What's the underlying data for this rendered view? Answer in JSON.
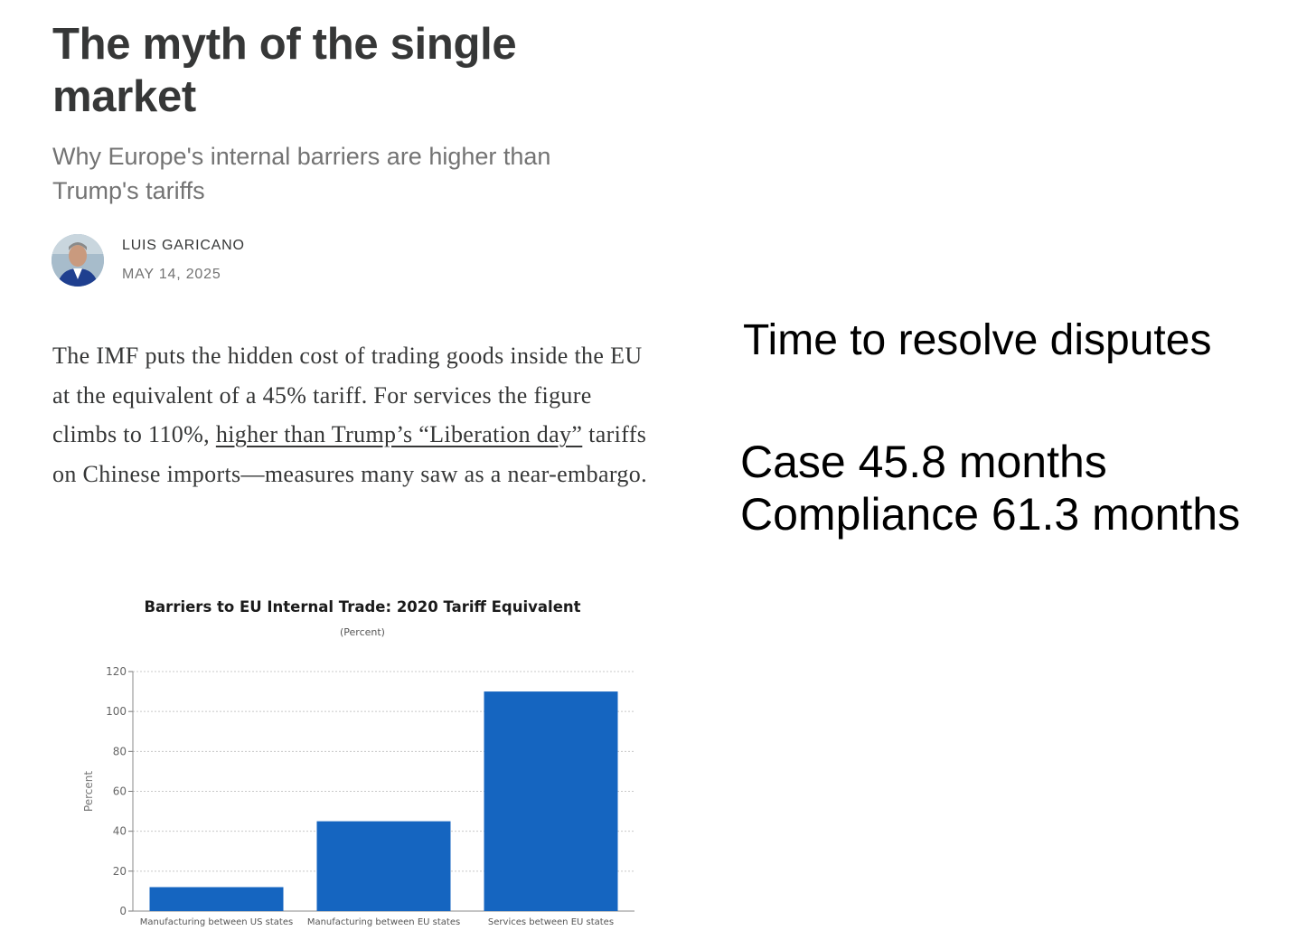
{
  "post": {
    "title": "The myth of the single market",
    "subtitle": "Why Europe's internal barriers are higher than Trump's tariffs",
    "author": "LUIS GARICANO",
    "date": "MAY 14, 2025",
    "body_part1": "The IMF puts the hidden cost of trading goods inside the EU at the equivalent of a 45% tariff. For services the figure climbs to 110%, ",
    "body_link": "higher than Trump’s “Liberation day”",
    "body_part2": " tariffs on Chinese imports—measures many saw as a near-embargo."
  },
  "slide": {
    "heading": "Time to resolve disputes",
    "line1": "Case 45.8 months",
    "line2": "Compliance 61.3 months"
  },
  "colors": {
    "bar": "#1565c0",
    "grid": "#c8c8c8"
  },
  "chart_data": {
    "type": "bar",
    "title": "Barriers to EU Internal Trade: 2020 Tariff Equivalent",
    "subtitle": "(Percent)",
    "ylabel": "Percent",
    "xlabel": "",
    "categories": [
      "Manufacturing between US states",
      "Manufacturing between EU states",
      "Services between EU states"
    ],
    "values": [
      12,
      45,
      110
    ],
    "ylim": [
      0,
      120
    ],
    "yticks": [
      0,
      20,
      40,
      60,
      80,
      100,
      120
    ],
    "grid": true
  }
}
